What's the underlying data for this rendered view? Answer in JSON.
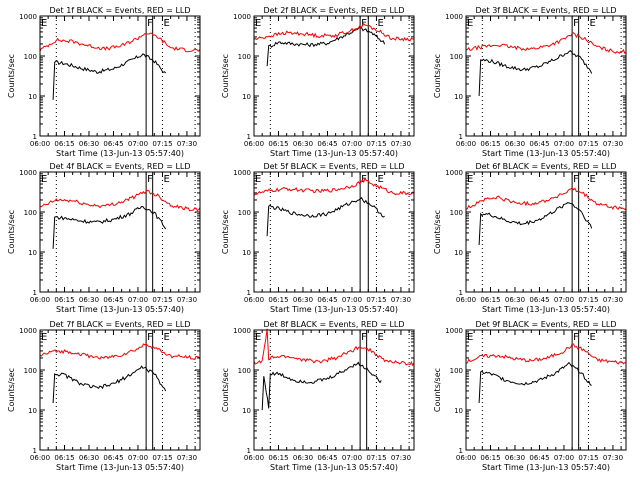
{
  "figure": {
    "xlabel": "Start Time (13-Jun-13 05:57:40)",
    "ylabel": "Counts/sec",
    "colors": {
      "events": "#000000",
      "lld": "#ff0000",
      "axis": "#000000"
    }
  },
  "chart_data": [
    {
      "type": "line",
      "title": "Det 1f BLACK = Events, RED = LLD",
      "xlabel": "Start Time (13-Jun-13 05:57:40)",
      "ylabel": "Counts/sec",
      "yscale": "log",
      "ylim": [
        1,
        1000
      ],
      "xlim": [
        "06:00",
        "07:38"
      ],
      "xticks": [
        "06:00",
        "06:15",
        "06:30",
        "06:45",
        "07:00",
        "07:15",
        "07:30"
      ],
      "yticks": [
        "1",
        "10",
        "100",
        "1000"
      ],
      "series": [
        {
          "name": "Events",
          "color": "#000000",
          "x": [
            "06:08",
            "06:09",
            "06:15",
            "06:25",
            "06:35",
            "06:45",
            "06:55",
            "07:03",
            "07:10",
            "07:17"
          ],
          "values": [
            8,
            70,
            65,
            50,
            40,
            48,
            75,
            110,
            75,
            35
          ]
        },
        {
          "name": "LLD",
          "color": "#ff0000",
          "x": [
            "06:00",
            "06:10",
            "06:20",
            "06:30",
            "06:40",
            "06:50",
            "07:00",
            "07:05",
            "07:12",
            "07:20",
            "07:30",
            "07:38"
          ],
          "values": [
            140,
            250,
            230,
            180,
            150,
            180,
            280,
            380,
            300,
            160,
            140,
            140
          ]
        }
      ],
      "markers": {
        "solid": [
          "07:05",
          "07:09"
        ],
        "dotted": [
          "06:10",
          "07:15",
          "07:35"
        ],
        "labels": [
          {
            "text": "E",
            "x": "06:00"
          },
          {
            "text": "F",
            "x": "07:05"
          },
          {
            "text": "E",
            "x": "07:15"
          }
        ]
      }
    },
    {
      "type": "line",
      "title": "Det 2f BLACK = Events, RED = LLD",
      "xlabel": "Start Time (13-Jun-13 05:57:40)",
      "ylabel": "Counts/sec",
      "yscale": "log",
      "ylim": [
        1,
        1000
      ],
      "xlim": [
        "06:00",
        "07:38"
      ],
      "xticks": [
        "06:00",
        "06:15",
        "06:30",
        "06:45",
        "07:00",
        "07:15",
        "07:30"
      ],
      "yticks": [
        "1",
        "10",
        "100",
        "1000"
      ],
      "series": [
        {
          "name": "Events",
          "color": "#000000",
          "x": [
            "06:08",
            "06:09",
            "06:15",
            "06:25",
            "06:35",
            "06:45",
            "06:55",
            "07:05",
            "07:12",
            "07:20"
          ],
          "values": [
            60,
            170,
            220,
            200,
            190,
            210,
            320,
            500,
            380,
            210
          ]
        },
        {
          "name": "LLD",
          "color": "#ff0000",
          "x": [
            "06:00",
            "06:10",
            "06:20",
            "06:30",
            "06:40",
            "06:50",
            "07:00",
            "07:08",
            "07:15",
            "07:25",
            "07:38"
          ],
          "values": [
            260,
            320,
            380,
            360,
            320,
            330,
            440,
            600,
            450,
            270,
            260
          ]
        }
      ],
      "markers": {
        "solid": [
          "07:05",
          "07:10"
        ],
        "dotted": [
          "06:10",
          "07:15",
          "07:35"
        ],
        "labels": [
          {
            "text": "E",
            "x": "06:00"
          },
          {
            "text": "F",
            "x": "07:05"
          },
          {
            "text": "E",
            "x": "07:15"
          }
        ]
      }
    },
    {
      "type": "line",
      "title": "Det 3f BLACK = Events, RED = LLD",
      "xlabel": "Start Time (13-Jun-13 05:57:40)",
      "ylabel": "Counts/sec",
      "yscale": "log",
      "ylim": [
        1,
        1000
      ],
      "xlim": [
        "06:00",
        "07:38"
      ],
      "xticks": [
        "06:00",
        "06:15",
        "06:30",
        "06:45",
        "07:00",
        "07:15",
        "07:30"
      ],
      "yticks": [
        "1",
        "10",
        "100",
        "1000"
      ],
      "series": [
        {
          "name": "Events",
          "color": "#000000",
          "x": [
            "06:08",
            "06:09",
            "06:15",
            "06:25",
            "06:35",
            "06:45",
            "06:55",
            "07:03",
            "07:10",
            "07:17"
          ],
          "values": [
            10,
            80,
            75,
            55,
            45,
            55,
            85,
            130,
            90,
            40
          ]
        },
        {
          "name": "LLD",
          "color": "#ff0000",
          "x": [
            "06:00",
            "06:10",
            "06:20",
            "06:30",
            "06:40",
            "06:50",
            "07:00",
            "07:05",
            "07:12",
            "07:20",
            "07:30",
            "07:38"
          ],
          "values": [
            140,
            170,
            190,
            160,
            150,
            180,
            260,
            360,
            280,
            170,
            130,
            130
          ]
        }
      ],
      "markers": {
        "solid": [
          "07:05",
          "07:09"
        ],
        "dotted": [
          "06:10",
          "07:15",
          "07:35"
        ],
        "labels": [
          {
            "text": "E",
            "x": "06:00"
          },
          {
            "text": "F",
            "x": "07:05"
          },
          {
            "text": "E",
            "x": "07:15"
          }
        ]
      }
    },
    {
      "type": "line",
      "title": "Det 4f BLACK = Events, RED = LLD",
      "xlabel": "Start Time (13-Jun-13 05:57:40)",
      "ylabel": "Counts/sec",
      "yscale": "log",
      "ylim": [
        1,
        1000
      ],
      "xlim": [
        "06:00",
        "07:38"
      ],
      "xticks": [
        "06:00",
        "06:15",
        "06:30",
        "06:45",
        "07:00",
        "07:15",
        "07:30"
      ],
      "yticks": [
        "1",
        "10",
        "100",
        "1000"
      ],
      "series": [
        {
          "name": "Events",
          "color": "#000000",
          "x": [
            "06:08",
            "06:09",
            "06:15",
            "06:25",
            "06:35",
            "06:45",
            "06:55",
            "07:03",
            "07:10",
            "07:17"
          ],
          "values": [
            12,
            75,
            70,
            60,
            55,
            65,
            90,
            140,
            95,
            40
          ]
        },
        {
          "name": "LLD",
          "color": "#ff0000",
          "x": [
            "06:00",
            "06:10",
            "06:20",
            "06:30",
            "06:40",
            "06:50",
            "07:00",
            "07:05",
            "07:12",
            "07:20",
            "07:30",
            "07:38"
          ],
          "values": [
            130,
            200,
            190,
            150,
            140,
            180,
            260,
            340,
            260,
            150,
            120,
            115
          ]
        }
      ],
      "markers": {
        "solid": [
          "07:05",
          "07:09"
        ],
        "dotted": [
          "06:10",
          "07:15",
          "07:35"
        ],
        "labels": [
          {
            "text": "E",
            "x": "06:00"
          },
          {
            "text": "F",
            "x": "07:05"
          },
          {
            "text": "E",
            "x": "07:15"
          }
        ]
      }
    },
    {
      "type": "line",
      "title": "Det 5f BLACK = Events, RED = LLD",
      "xlabel": "Start Time (13-Jun-13 05:57:40)",
      "ylabel": "Counts/sec",
      "yscale": "log",
      "ylim": [
        1,
        1000
      ],
      "xlim": [
        "06:00",
        "07:38"
      ],
      "xticks": [
        "06:00",
        "06:15",
        "06:30",
        "06:45",
        "07:00",
        "07:15",
        "07:30"
      ],
      "yticks": [
        "1",
        "10",
        "100",
        "1000"
      ],
      "series": [
        {
          "name": "Events",
          "color": "#000000",
          "x": [
            "06:08",
            "06:09",
            "06:15",
            "06:25",
            "06:35",
            "06:45",
            "06:55",
            "07:05",
            "07:12",
            "07:20"
          ],
          "values": [
            25,
            140,
            120,
            90,
            80,
            90,
            140,
            220,
            150,
            75
          ]
        },
        {
          "name": "LLD",
          "color": "#ff0000",
          "x": [
            "06:00",
            "06:10",
            "06:20",
            "06:30",
            "06:40",
            "06:50",
            "07:00",
            "07:08",
            "07:15",
            "07:25",
            "07:38"
          ],
          "values": [
            280,
            340,
            380,
            350,
            330,
            360,
            450,
            620,
            450,
            300,
            290
          ]
        }
      ],
      "markers": {
        "solid": [
          "07:05",
          "07:10"
        ],
        "dotted": [
          "06:10",
          "07:15",
          "07:35"
        ],
        "labels": [
          {
            "text": "E",
            "x": "06:00"
          },
          {
            "text": "F",
            "x": "07:05"
          },
          {
            "text": "E",
            "x": "07:15"
          }
        ]
      }
    },
    {
      "type": "line",
      "title": "Det 6f BLACK = Events, RED = LLD",
      "xlabel": "Start Time (13-Jun-13 05:57:40)",
      "ylabel": "Counts/sec",
      "yscale": "log",
      "ylim": [
        1,
        1000
      ],
      "xlim": [
        "06:00",
        "07:38"
      ],
      "xticks": [
        "06:00",
        "06:15",
        "06:30",
        "06:45",
        "07:00",
        "07:15",
        "07:30"
      ],
      "yticks": [
        "1",
        "10",
        "100",
        "1000"
      ],
      "series": [
        {
          "name": "Events",
          "color": "#000000",
          "x": [
            "06:08",
            "06:09",
            "06:15",
            "06:25",
            "06:35",
            "06:45",
            "06:55",
            "07:03",
            "07:10",
            "07:17"
          ],
          "values": [
            15,
            90,
            85,
            60,
            50,
            65,
            110,
            180,
            110,
            40
          ]
        },
        {
          "name": "LLD",
          "color": "#ff0000",
          "x": [
            "06:00",
            "06:10",
            "06:20",
            "06:30",
            "06:40",
            "06:50",
            "07:00",
            "07:05",
            "07:12",
            "07:20",
            "07:30",
            "07:38"
          ],
          "values": [
            120,
            200,
            230,
            170,
            160,
            200,
            290,
            380,
            280,
            160,
            130,
            120
          ]
        }
      ],
      "markers": {
        "solid": [
          "07:05",
          "07:09"
        ],
        "dotted": [
          "06:10",
          "07:15",
          "07:35"
        ],
        "labels": [
          {
            "text": "E",
            "x": "06:00"
          },
          {
            "text": "F",
            "x": "07:05"
          },
          {
            "text": "E",
            "x": "07:15"
          }
        ]
      }
    },
    {
      "type": "line",
      "title": "Det 7f BLACK = Events, RED = LLD",
      "xlabel": "Start Time (13-Jun-13 05:57:40)",
      "ylabel": "Counts/sec",
      "yscale": "log",
      "ylim": [
        1,
        1000
      ],
      "xlim": [
        "06:00",
        "07:38"
      ],
      "xticks": [
        "06:00",
        "06:15",
        "06:30",
        "06:45",
        "07:00",
        "07:15",
        "07:30"
      ],
      "yticks": [
        "1",
        "10",
        "100",
        "1000"
      ],
      "series": [
        {
          "name": "Events",
          "color": "#000000",
          "x": [
            "06:08",
            "06:09",
            "06:15",
            "06:25",
            "06:35",
            "06:45",
            "06:55",
            "07:03",
            "07:10",
            "07:17"
          ],
          "values": [
            15,
            80,
            75,
            45,
            35,
            45,
            75,
            120,
            80,
            30
          ]
        },
        {
          "name": "LLD",
          "color": "#ff0000",
          "x": [
            "06:00",
            "06:10",
            "06:20",
            "06:30",
            "06:40",
            "06:50",
            "07:00",
            "07:05",
            "07:12",
            "07:20",
            "07:30",
            "07:38"
          ],
          "values": [
            230,
            300,
            280,
            220,
            200,
            240,
            340,
            450,
            330,
            220,
            210,
            200
          ]
        }
      ],
      "markers": {
        "solid": [
          "07:05",
          "07:09"
        ],
        "dotted": [
          "06:10",
          "07:15",
          "07:35"
        ],
        "labels": [
          {
            "text": "E",
            "x": "06:00"
          },
          {
            "text": "F",
            "x": "07:05"
          },
          {
            "text": "E",
            "x": "07:15"
          }
        ]
      }
    },
    {
      "type": "line",
      "title": "Det 8f BLACK = Events, RED = LLD",
      "xlabel": "Start Time (13-Jun-13 05:57:40)",
      "ylabel": "Counts/sec",
      "yscale": "log",
      "ylim": [
        1,
        1000
      ],
      "xlim": [
        "06:00",
        "07:38"
      ],
      "xticks": [
        "06:00",
        "06:15",
        "06:30",
        "06:45",
        "07:00",
        "07:15",
        "07:30"
      ],
      "yticks": [
        "1",
        "10",
        "100",
        "1000"
      ],
      "series": [
        {
          "name": "Events",
          "color": "#000000",
          "x": [
            "06:05",
            "06:06",
            "06:09",
            "06:10",
            "06:15",
            "06:25",
            "06:35",
            "06:45",
            "06:55",
            "07:03",
            "07:10",
            "07:18"
          ],
          "values": [
            10,
            70,
            12,
            80,
            80,
            55,
            50,
            60,
            95,
            150,
            100,
            50
          ]
        },
        {
          "name": "LLD",
          "color": "#ff0000",
          "x": [
            "06:00",
            "06:05",
            "06:08",
            "06:09",
            "06:12",
            "06:20",
            "06:30",
            "06:40",
            "06:50",
            "07:00",
            "07:05",
            "07:12",
            "07:20",
            "07:30",
            "07:38"
          ],
          "values": [
            150,
            160,
            1000,
            180,
            210,
            220,
            180,
            160,
            200,
            300,
            400,
            300,
            170,
            150,
            140
          ]
        }
      ],
      "markers": {
        "solid": [
          "07:05",
          "07:09"
        ],
        "dotted": [
          "06:10",
          "07:15",
          "07:35"
        ],
        "labels": [
          {
            "text": "E",
            "x": "06:00"
          },
          {
            "text": "F",
            "x": "07:05"
          },
          {
            "text": "E",
            "x": "07:15"
          }
        ]
      }
    },
    {
      "type": "line",
      "title": "Det 9f BLACK = Events, RED = LLD",
      "xlabel": "Start Time (13-Jun-13 05:57:40)",
      "ylabel": "Counts/sec",
      "yscale": "log",
      "ylim": [
        1,
        1000
      ],
      "xlim": [
        "06:00",
        "07:38"
      ],
      "xticks": [
        "06:00",
        "06:15",
        "06:30",
        "06:45",
        "07:00",
        "07:15",
        "07:30"
      ],
      "yticks": [
        "1",
        "10",
        "100",
        "1000"
      ],
      "series": [
        {
          "name": "Events",
          "color": "#000000",
          "x": [
            "06:08",
            "06:09",
            "06:15",
            "06:25",
            "06:35",
            "06:45",
            "06:55",
            "07:03",
            "07:10",
            "07:17"
          ],
          "values": [
            15,
            90,
            80,
            55,
            45,
            55,
            85,
            140,
            90,
            40
          ]
        },
        {
          "name": "LLD",
          "color": "#ff0000",
          "x": [
            "06:00",
            "06:10",
            "06:20",
            "06:30",
            "06:40",
            "06:50",
            "07:00",
            "07:05",
            "07:12",
            "07:20",
            "07:30",
            "07:38"
          ],
          "values": [
            160,
            220,
            230,
            190,
            170,
            200,
            300,
            420,
            320,
            180,
            160,
            150
          ]
        }
      ],
      "markers": {
        "solid": [
          "07:05",
          "07:09"
        ],
        "dotted": [
          "06:10",
          "07:15",
          "07:35"
        ],
        "labels": [
          {
            "text": "E",
            "x": "06:00"
          },
          {
            "text": "F",
            "x": "07:05"
          },
          {
            "text": "E",
            "x": "07:15"
          }
        ]
      }
    }
  ]
}
